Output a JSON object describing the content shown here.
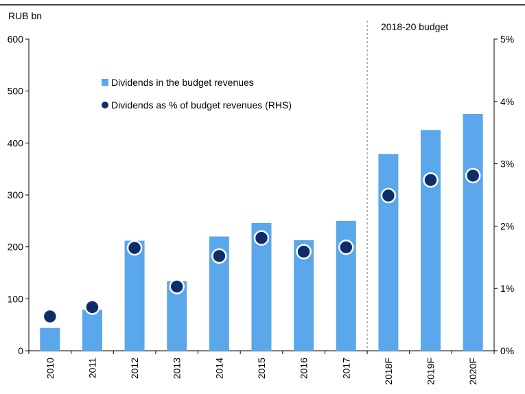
{
  "chart_data": {
    "type": "bar",
    "categories": [
      "2010",
      "2011",
      "2012",
      "2013",
      "2014",
      "2015",
      "2016",
      "2017",
      "2018F",
      "2019F",
      "2020F"
    ],
    "y_left_unit": "RUB bn",
    "ylim_left": [
      0,
      600
    ],
    "yticks_left": [
      "0",
      "100",
      "200",
      "300",
      "400",
      "500",
      "600"
    ],
    "ylim_right": [
      0,
      5
    ],
    "yticks_right": [
      "0%",
      "1%",
      "2%",
      "3%",
      "4%",
      "5%"
    ],
    "series": [
      {
        "name": "Dividends in the budget revenues",
        "type": "bar",
        "axis": "left",
        "color": "#5aa7ec",
        "values": [
          44,
          79,
          212,
          134,
          220,
          246,
          213,
          250,
          379,
          425,
          456
        ]
      },
      {
        "name": "Dividends as % of budget revenues (RHS)",
        "type": "scatter",
        "axis": "right",
        "color": "#0f2d69",
        "values": [
          0.55,
          0.7,
          1.65,
          1.03,
          1.52,
          1.81,
          1.59,
          1.66,
          2.49,
          2.74,
          2.81
        ]
      }
    ],
    "annotation": {
      "text": "2018-20 budget",
      "divider_after_category": "2017"
    },
    "legend_position": "top-left",
    "grid": false
  }
}
